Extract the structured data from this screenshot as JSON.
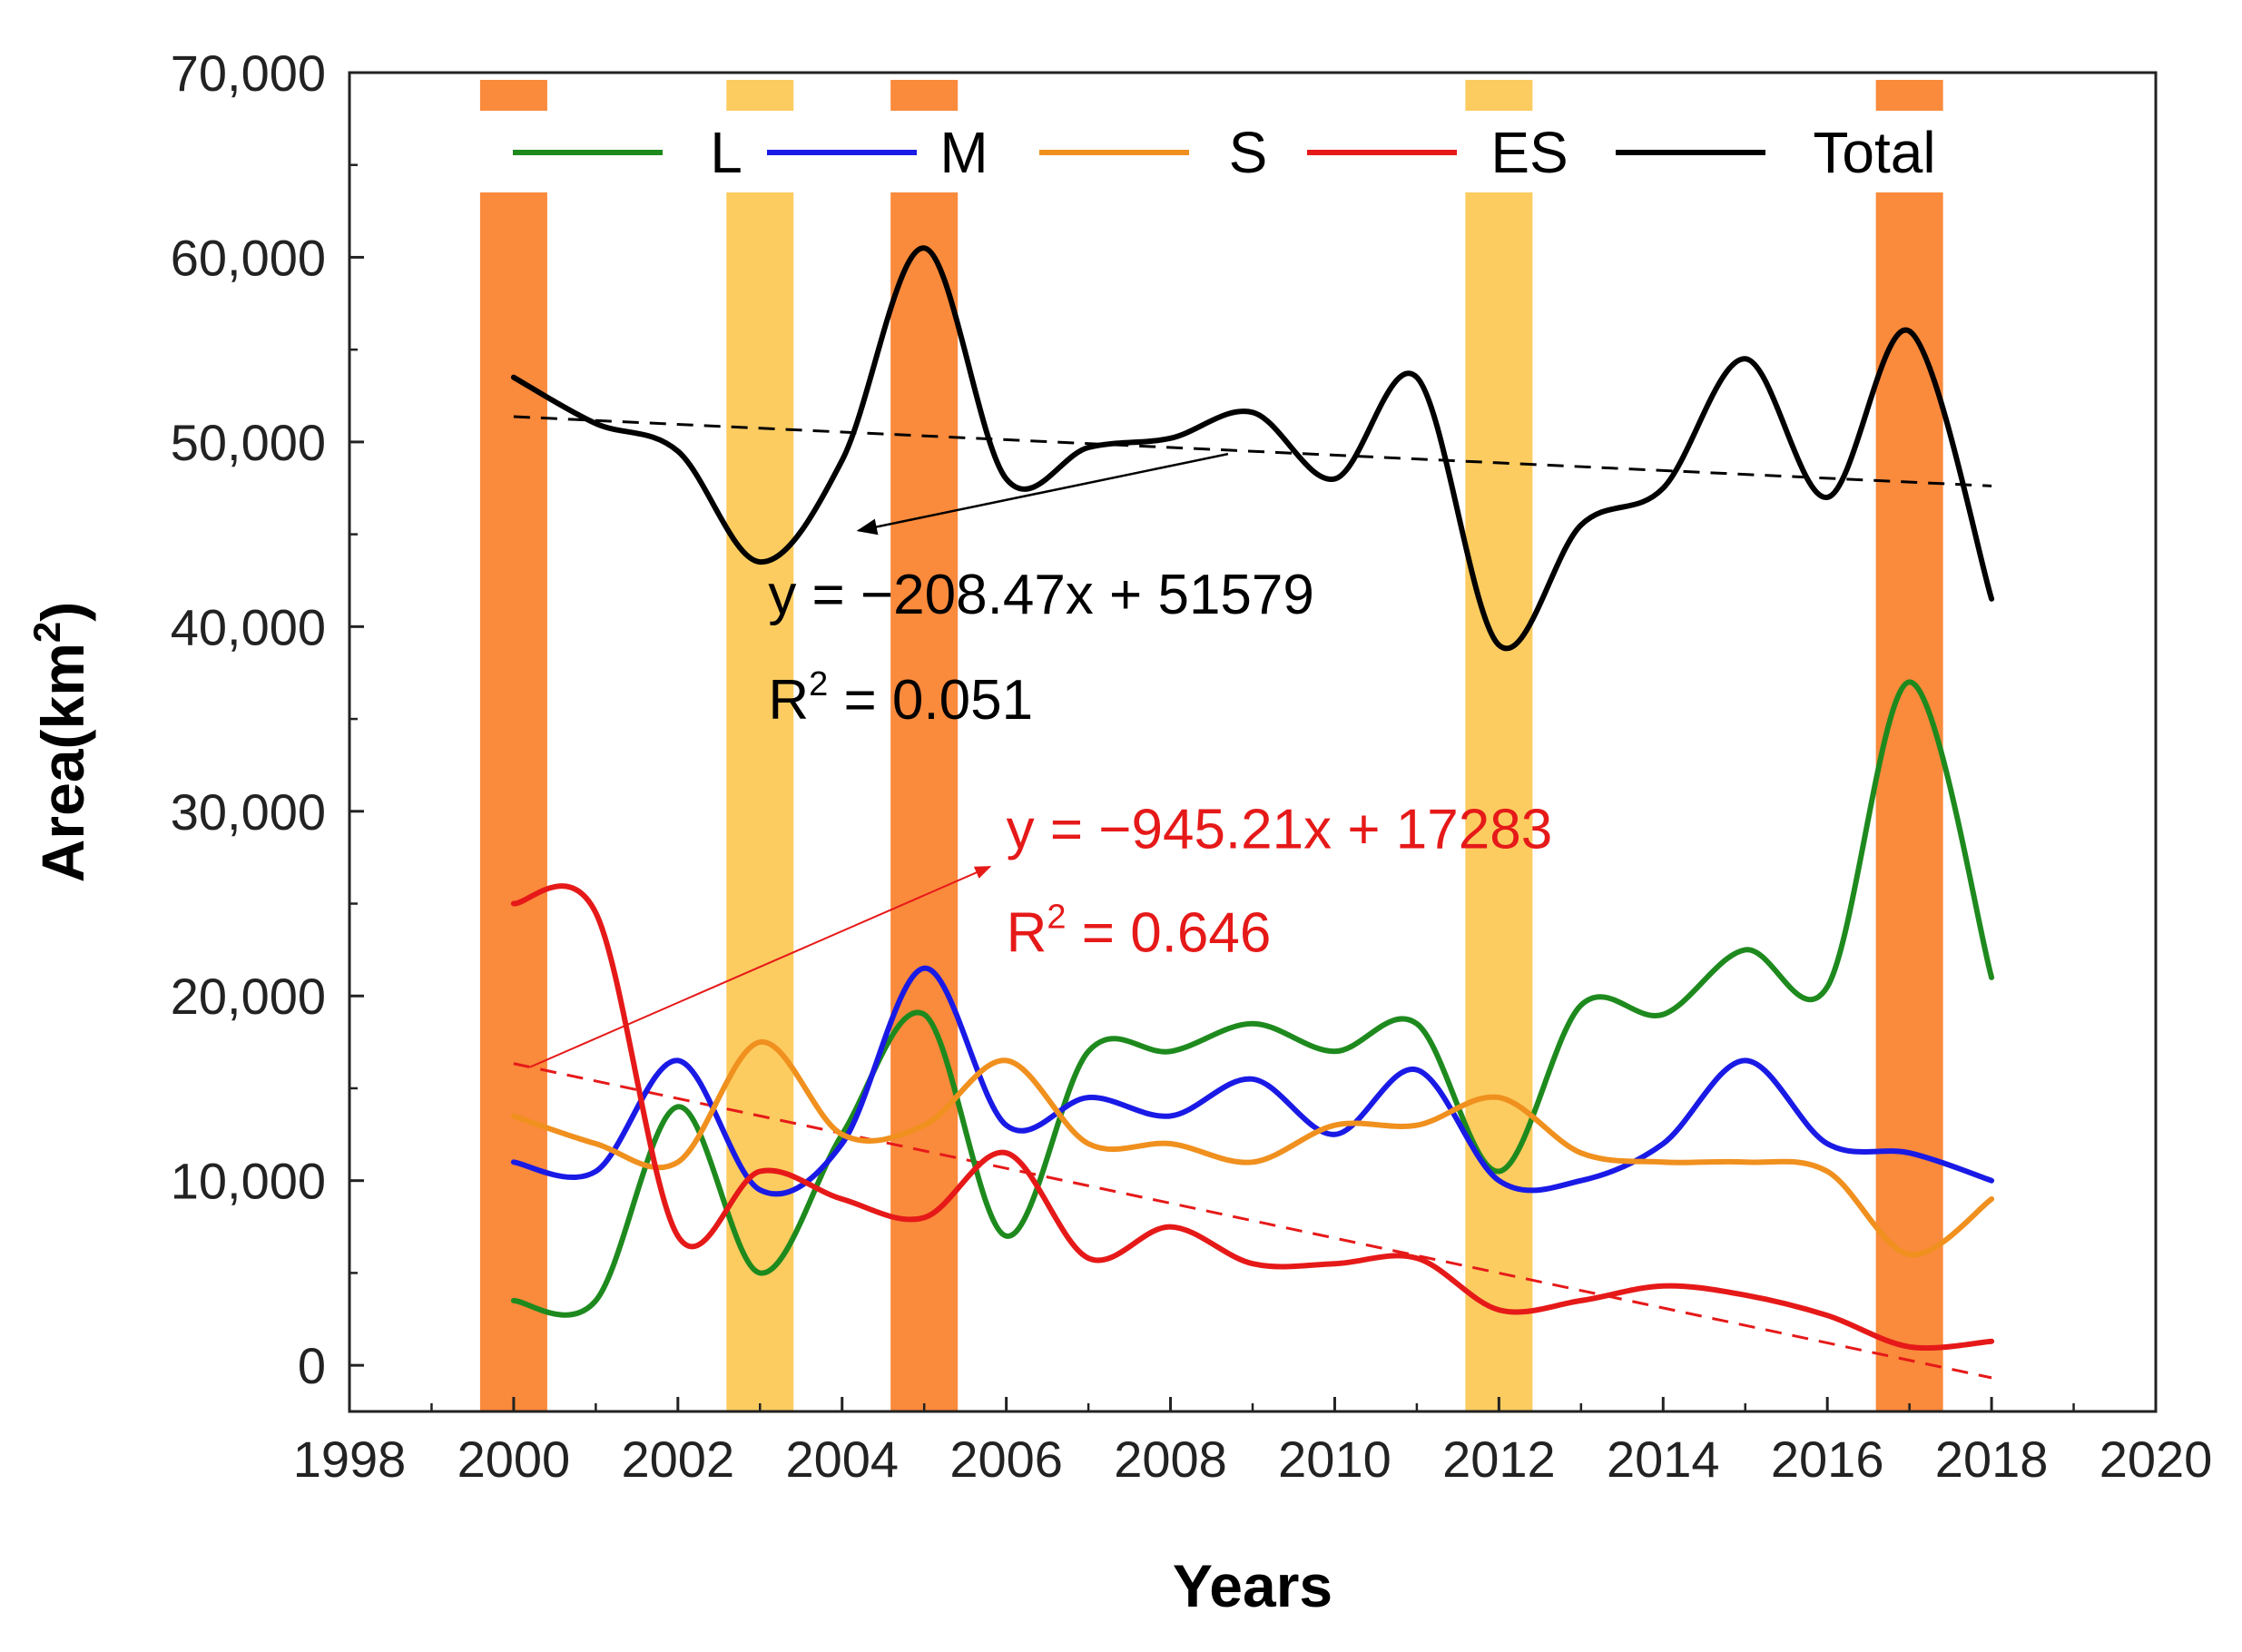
{
  "chart_data": {
    "type": "line",
    "title": "",
    "xlabel": "Years",
    "ylabel_main": "Area(km",
    "ylabel_sup": "2",
    "ylabel_close": ")",
    "xlim": [
      1998,
      2020
    ],
    "ylim": [
      -2500,
      70000
    ],
    "xticks": [
      1998,
      2000,
      2002,
      2004,
      2006,
      2008,
      2010,
      2012,
      2014,
      2016,
      2018,
      2020
    ],
    "yticks": [
      0,
      10000,
      20000,
      30000,
      40000,
      50000,
      60000,
      70000
    ],
    "ytick_labels": [
      "0",
      "10,000",
      "20,000",
      "30,000",
      "40,000",
      "50,000",
      "60,000",
      "70,000"
    ],
    "x": [
      2000,
      2001,
      2002,
      2003,
      2004,
      2005,
      2006,
      2007,
      2008,
      2009,
      2010,
      2011,
      2012,
      2013,
      2014,
      2015,
      2016,
      2017,
      2018
    ],
    "series": [
      {
        "name": "L",
        "color": "#1e8a1e",
        "values": [
          3500,
          3500,
          14000,
          5000,
          12500,
          19000,
          7000,
          17000,
          17000,
          18500,
          17000,
          18500,
          10500,
          19500,
          19000,
          22500,
          20500,
          37000,
          21000
        ]
      },
      {
        "name": "M",
        "color": "#1a1ae6",
        "values": [
          11000,
          10500,
          16500,
          9500,
          12000,
          21500,
          13000,
          14500,
          13500,
          15500,
          12500,
          16000,
          10000,
          10000,
          12000,
          16500,
          12000,
          11500,
          10000
        ]
      },
      {
        "name": "S",
        "color": "#f0901e",
        "values": [
          13500,
          12000,
          11000,
          17500,
          12500,
          13000,
          16500,
          12000,
          12000,
          11000,
          13000,
          13000,
          14500,
          11500,
          11000,
          11000,
          10500,
          6000,
          9000
        ]
      },
      {
        "name": "ES",
        "color": "#e61919",
        "values": [
          25000,
          24500,
          7000,
          10500,
          9000,
          8000,
          11500,
          5800,
          7500,
          5500,
          5500,
          5800,
          3000,
          3500,
          4300,
          3800,
          2700,
          1000,
          1300
        ]
      },
      {
        "name": "Total",
        "color": "#000000",
        "values": [
          53500,
          51000,
          49500,
          43500,
          49000,
          60500,
          48000,
          49700,
          50200,
          51600,
          48000,
          53500,
          39000,
          45500,
          47500,
          54500,
          47000,
          56000,
          41500
        ]
      }
    ],
    "trendlines": [
      {
        "name": "Total trend",
        "color": "#000000",
        "slope": -208.47,
        "intercept": 51579,
        "x_start": 2000,
        "x_end": 2018,
        "equation": "y = −208.47x + 51579",
        "r2_label": "R",
        "r2_sup": "2",
        "r2_value": " = 0.051"
      },
      {
        "name": "ES trend",
        "color": "#e61919",
        "slope": -945.21,
        "intercept": 17283,
        "x_start": 2000,
        "x_end": 2018,
        "equation": "y = −945.21x + 17283",
        "r2_label": "R",
        "r2_sup": "2",
        "r2_value": " = 0.646"
      }
    ],
    "highlight_bands": [
      {
        "year": 2000,
        "color": "#fa8a3c"
      },
      {
        "year": 2003,
        "color": "#fccc60"
      },
      {
        "year": 2005,
        "color": "#fa8a3c"
      },
      {
        "year": 2012,
        "color": "#fccc60"
      },
      {
        "year": 2017,
        "color": "#fa8a3c"
      }
    ],
    "legend_position": "top"
  }
}
